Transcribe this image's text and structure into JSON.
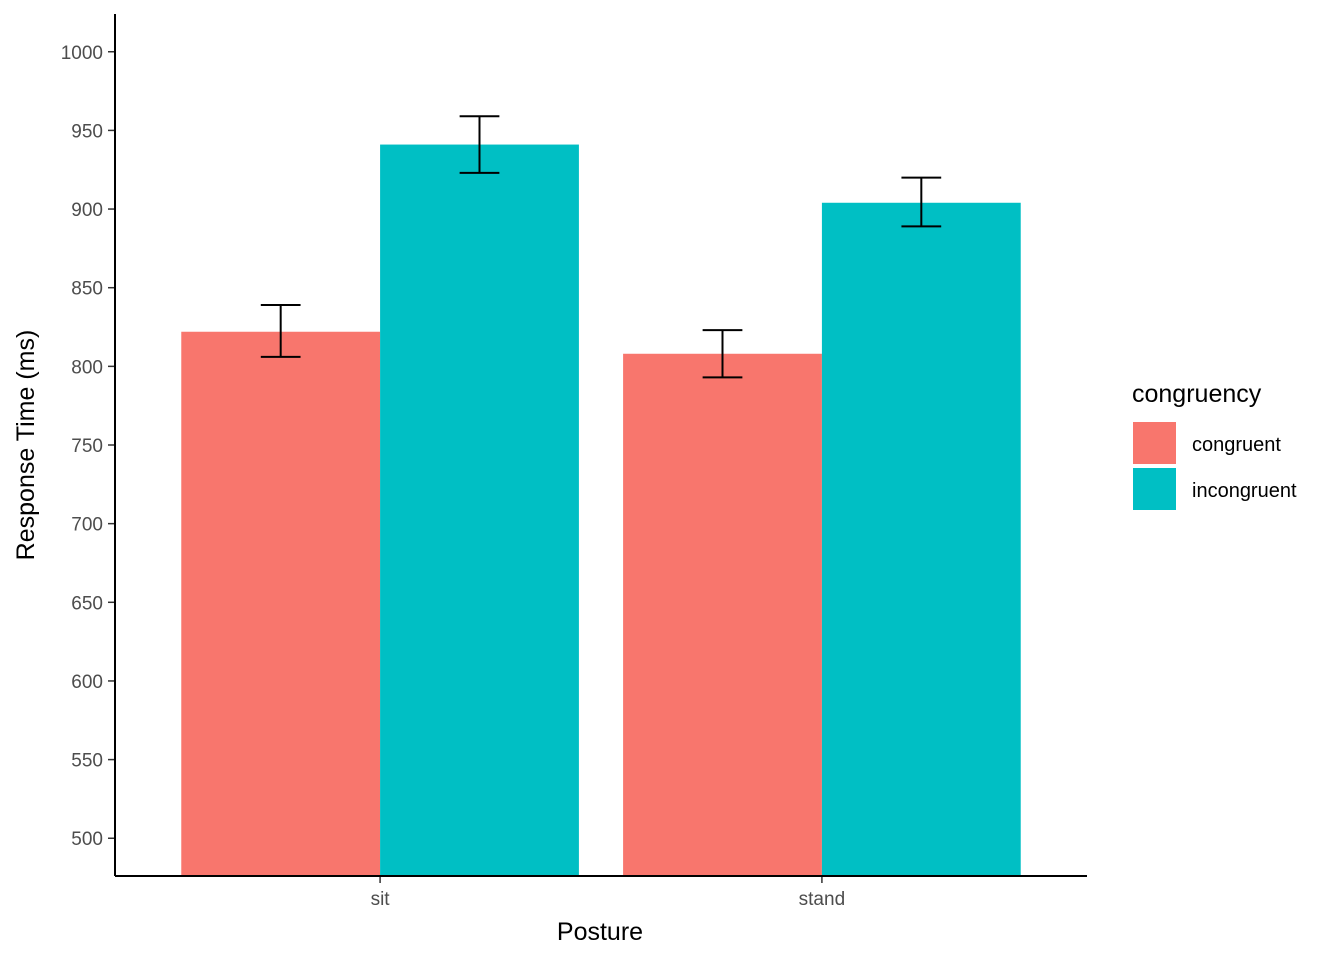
{
  "chart_data": {
    "type": "bar",
    "xlabel": "Posture",
    "ylabel": "Response Time (ms)",
    "categories": [
      "sit",
      "stand"
    ],
    "ylim": [
      476,
      1024
    ],
    "yticks": [
      500,
      550,
      600,
      650,
      700,
      750,
      800,
      850,
      900,
      950,
      1000
    ],
    "legend": {
      "title": "congruency",
      "position": "right"
    },
    "series": [
      {
        "name": "congruent",
        "color": "#F8766D",
        "values": [
          822,
          808
        ],
        "error_low": [
          806,
          793
        ],
        "error_high": [
          839,
          823
        ]
      },
      {
        "name": "incongruent",
        "color": "#00BFC4",
        "values": [
          941,
          904
        ],
        "error_low": [
          923,
          889
        ],
        "error_high": [
          959,
          920
        ]
      }
    ],
    "grid": false
  }
}
